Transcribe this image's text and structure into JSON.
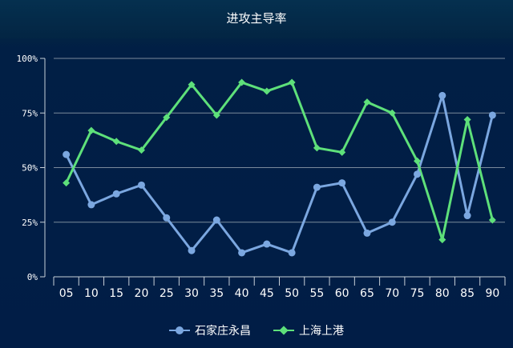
{
  "title": "进攻主导率",
  "colors": {
    "series1": "#7ba7e0",
    "series2": "#5ee07a",
    "grid": "#7a8a9c",
    "axis_text": "#ffffff"
  },
  "chart_data": {
    "type": "line",
    "title": "进攻主导率",
    "categories": [
      "05",
      "10",
      "15",
      "20",
      "25",
      "30",
      "35",
      "40",
      "45",
      "50",
      "55",
      "60",
      "65",
      "70",
      "75",
      "80",
      "85",
      "90"
    ],
    "y_ticks": [
      "0%",
      "25%",
      "50%",
      "75%",
      "100%"
    ],
    "ylim": [
      0,
      100
    ],
    "grid": true,
    "legend_position": "bottom",
    "series": [
      {
        "name": "石家庄永昌",
        "marker": "circle",
        "values": [
          56,
          33,
          38,
          42,
          27,
          12,
          26,
          11,
          15,
          11,
          41,
          43,
          20,
          25,
          47,
          83,
          28,
          74
        ]
      },
      {
        "name": "上海上港",
        "marker": "diamond",
        "values": [
          43,
          67,
          62,
          58,
          73,
          88,
          74,
          89,
          85,
          89,
          59,
          57,
          80,
          75,
          53,
          17,
          72,
          26
        ]
      }
    ]
  }
}
